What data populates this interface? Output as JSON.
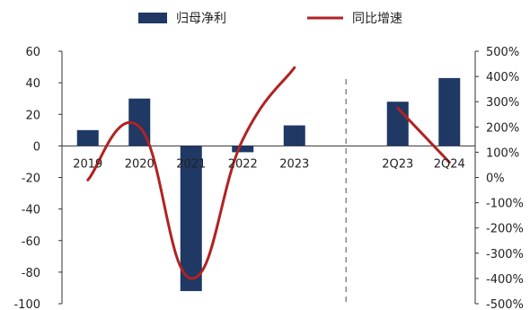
{
  "chart_data": {
    "type": "bar+line",
    "categories": [
      "2019",
      "2020",
      "2021",
      "2022",
      "2023",
      "",
      "2Q23",
      "2Q24"
    ],
    "series": [
      {
        "name": "归母净利",
        "type": "bar",
        "axis": "left",
        "color": "#1f3864",
        "values": [
          10,
          30,
          -92,
          -4,
          13,
          null,
          28,
          43
        ]
      },
      {
        "name": "同比增速",
        "type": "line",
        "axis": "right",
        "color": "#b22222",
        "segments": [
          {
            "categories": [
              "2019",
              "2020",
              "2021",
              "2022",
              "2023"
            ],
            "values": [
              -10,
              200,
              -400,
              150,
              435
            ]
          },
          {
            "categories": [
              "2Q23",
              "2Q24"
            ],
            "values": [
              275,
              60
            ]
          }
        ]
      }
    ],
    "left_axis": {
      "min": -100,
      "max": 60,
      "ticks": [
        "60",
        "40",
        "20",
        "0",
        "-20",
        "-40",
        "-60",
        "-80",
        "-100"
      ]
    },
    "right_axis": {
      "min": -500,
      "max": 500,
      "ticks": [
        "500%",
        "400%",
        "300%",
        "200%",
        "100%",
        "0%",
        "-100%",
        "-200%",
        "-300%",
        "-400%",
        "-500%"
      ]
    },
    "divider_after": "2023",
    "legend_position": "top",
    "grid": false
  }
}
